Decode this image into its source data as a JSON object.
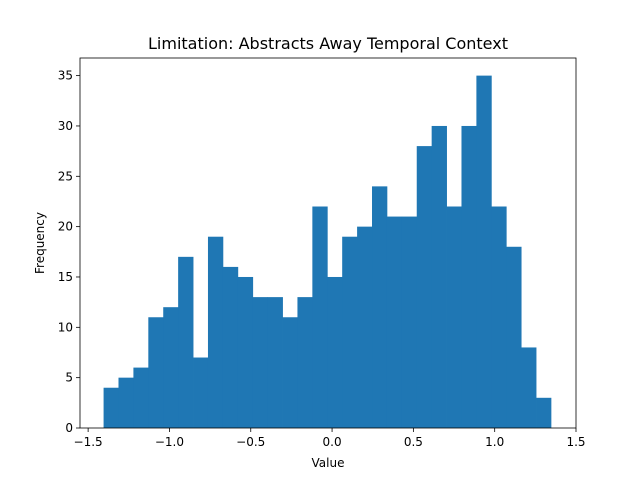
{
  "chart_data": {
    "type": "bar",
    "subtype": "histogram",
    "title": "Limitation: Abstracts Away Temporal Context",
    "xlabel": "Value",
    "ylabel": "Frequency",
    "xlim": [
      -1.55,
      1.5
    ],
    "ylim": [
      0,
      36.75
    ],
    "xticks": [
      -1.5,
      -1.0,
      -0.5,
      0.0,
      0.5,
      1.0,
      1.5
    ],
    "xtick_labels": [
      "−1.5",
      "−1.0",
      "−0.5",
      "0.0",
      "0.5",
      "1.0",
      "1.5"
    ],
    "yticks": [
      0,
      5,
      10,
      15,
      20,
      25,
      30,
      35
    ],
    "ytick_labels": [
      "0",
      "5",
      "10",
      "15",
      "20",
      "25",
      "30",
      "35"
    ],
    "bin_start": -1.405,
    "bin_width": 0.0917,
    "values": [
      4,
      5,
      6,
      11,
      12,
      17,
      7,
      19,
      16,
      15,
      13,
      13,
      11,
      13,
      22,
      15,
      19,
      20,
      24,
      21,
      21,
      28,
      30,
      22,
      30,
      35,
      22,
      18,
      8,
      3
    ],
    "bar_color": "#1f77b4",
    "grid": false,
    "legend": "none"
  }
}
